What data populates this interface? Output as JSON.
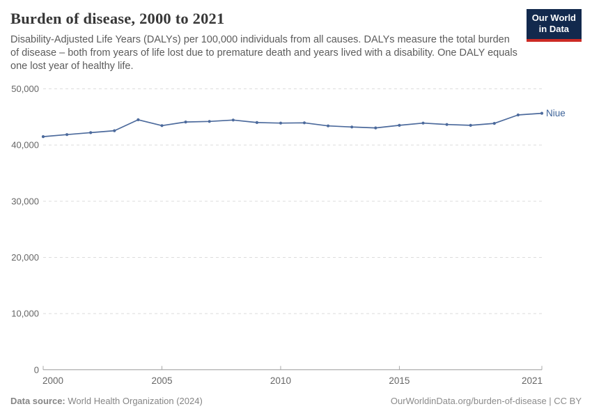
{
  "header": {
    "title": "Burden of disease, 2000 to 2021",
    "subtitle": "Disability-Adjusted Life Years (DALYs) per 100,000 individuals from all causes. DALYs measure the total burden of disease – both from years of life lost due to premature death and years lived with a disability. One DALY equals one lost year of healthy life.",
    "logo": {
      "line1": "Our World",
      "line2": "in Data"
    }
  },
  "chart_data": {
    "type": "line",
    "title": "Burden of disease, 2000 to 2021",
    "xlabel": "",
    "ylabel": "",
    "xlim": [
      2000,
      2021
    ],
    "ylim": [
      0,
      50000
    ],
    "grid": "horizontal-dashed",
    "legend_position": "end-of-line-label",
    "x_ticks": [
      2000,
      2005,
      2010,
      2015,
      2021
    ],
    "x_tick_labels": [
      "2000",
      "2005",
      "2010",
      "2015",
      "2021"
    ],
    "y_ticks": [
      0,
      10000,
      20000,
      30000,
      40000,
      50000
    ],
    "y_tick_labels": [
      "0",
      "10,000",
      "20,000",
      "30,000",
      "40,000",
      "50,000"
    ],
    "x": [
      2000,
      2001,
      2002,
      2003,
      2004,
      2005,
      2006,
      2007,
      2008,
      2009,
      2010,
      2011,
      2012,
      2013,
      2014,
      2015,
      2016,
      2017,
      2018,
      2019,
      2020,
      2021
    ],
    "series": [
      {
        "name": "Niue",
        "color": "#4c6a9c",
        "values": [
          41500,
          41850,
          42200,
          42550,
          44500,
          43450,
          44100,
          44200,
          44450,
          44000,
          43900,
          43950,
          43400,
          43200,
          43050,
          43500,
          43900,
          43650,
          43500,
          43850,
          45350,
          45650
        ]
      }
    ]
  },
  "footer": {
    "datasource_label": "Data source:",
    "datasource_value": "World Health Organization (2024)",
    "link": "OurWorldinData.org/burden-of-disease | CC BY"
  },
  "colors": {
    "line": "#4c6a9c",
    "series_label": "#3d6399",
    "gridline": "#dcdcdc",
    "axis_line": "#9a9a9a",
    "tick_mark": "#a8a8a8",
    "axis_text": "#666666",
    "logo_bg": "#12294d",
    "logo_bar": "#cc2a24"
  }
}
